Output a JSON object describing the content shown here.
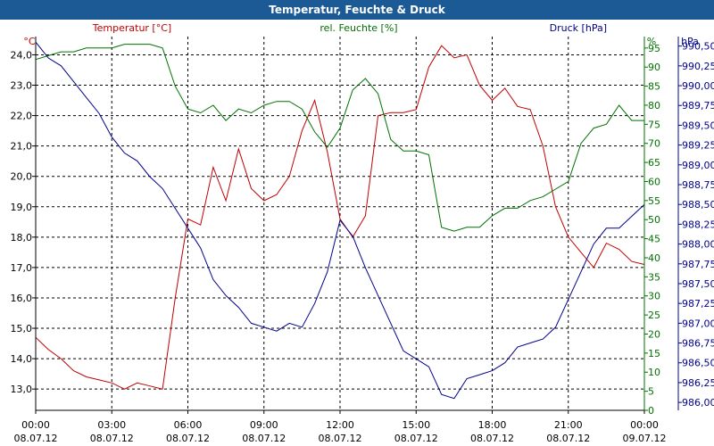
{
  "chart_data": {
    "type": "line",
    "title": "Temperatur, Feuchte & Druck",
    "x_ticks": [
      {
        "h": 0,
        "time": "00:00",
        "date": "08.07.12"
      },
      {
        "h": 3,
        "time": "03:00",
        "date": "08.07.12"
      },
      {
        "h": 6,
        "time": "06:00",
        "date": "08.07.12"
      },
      {
        "h": 9,
        "time": "09:00",
        "date": "08.07.12"
      },
      {
        "h": 12,
        "time": "12:00",
        "date": "08.07.12"
      },
      {
        "h": 15,
        "time": "15:00",
        "date": "08.07.12"
      },
      {
        "h": 18,
        "time": "18:00",
        "date": "08.07.12"
      },
      {
        "h": 21,
        "time": "21:00",
        "date": "08.07.12"
      },
      {
        "h": 24,
        "time": "00:00",
        "date": "09.07.12"
      }
    ],
    "x_range": [
      0,
      24
    ],
    "grid": true,
    "axes": {
      "temp": {
        "unit": "°C",
        "range": [
          12.3,
          24.6
        ],
        "ticks": [
          "13,0",
          "14,0",
          "15,0",
          "16,0",
          "17,0",
          "18,0",
          "19,0",
          "20,0",
          "21,0",
          "22,0",
          "23,0",
          "24,0"
        ],
        "tick_values": [
          13,
          14,
          15,
          16,
          17,
          18,
          19,
          20,
          21,
          22,
          23,
          24
        ]
      },
      "hum": {
        "unit": "%",
        "range": [
          0,
          98
        ],
        "ticks": [
          "0",
          "5",
          "10",
          "15",
          "20",
          "25",
          "30",
          "35",
          "40",
          "45",
          "50",
          "55",
          "60",
          "65",
          "70",
          "75",
          "80",
          "85",
          "90",
          "95"
        ],
        "tick_values": [
          0,
          5,
          10,
          15,
          20,
          25,
          30,
          35,
          40,
          45,
          50,
          55,
          60,
          65,
          70,
          75,
          80,
          85,
          90,
          95
        ]
      },
      "press": {
        "unit": "hPa",
        "range": [
          985.9,
          990.62
        ],
        "ticks": [
          "986,00",
          "986,25",
          "986,50",
          "986,75",
          "987,00",
          "987,25",
          "987,50",
          "987,75",
          "988,00",
          "988,25",
          "988,50",
          "988,75",
          "989,00",
          "989,25",
          "989,50",
          "989,75",
          "990,00",
          "990,25",
          "990,50"
        ],
        "tick_values": [
          986.0,
          986.25,
          986.5,
          986.75,
          987.0,
          987.25,
          987.5,
          987.75,
          988.0,
          988.25,
          988.5,
          988.75,
          989.0,
          989.25,
          989.5,
          989.75,
          990.0,
          990.25,
          990.5
        ]
      }
    },
    "series": [
      {
        "name": "Temperatur [°C]",
        "axis": "temp",
        "color": "#c00000",
        "x": [
          0,
          0.5,
          1,
          1.5,
          2,
          2.5,
          3,
          3.5,
          4,
          4.5,
          5,
          5.5,
          6,
          6.5,
          7,
          7.5,
          8,
          8.5,
          9,
          9.5,
          10,
          10.5,
          11,
          11.5,
          12,
          12.5,
          13,
          13.5,
          14,
          14.5,
          15,
          15.5,
          16,
          16.5,
          17,
          17.5,
          18,
          18.5,
          19,
          19.5,
          20,
          20.5,
          21,
          21.5,
          22,
          22.5,
          23,
          23.5,
          24
        ],
        "values": [
          14.7,
          14.3,
          14.0,
          13.6,
          13.4,
          13.3,
          13.2,
          13.0,
          13.2,
          13.1,
          13.0,
          16.0,
          18.6,
          18.4,
          20.3,
          19.2,
          20.9,
          19.6,
          19.2,
          19.4,
          20.0,
          21.5,
          22.5,
          20.8,
          18.6,
          18.0,
          18.7,
          22.0,
          22.1,
          22.1,
          22.2,
          23.6,
          24.3,
          23.9,
          24.0,
          23.0,
          22.5,
          22.9,
          22.3,
          22.2,
          21.0,
          19.0,
          18.0,
          17.5,
          17.0,
          17.8,
          17.6,
          17.2,
          17.1
        ]
      },
      {
        "name": "rel. Feuchte [%]",
        "axis": "hum",
        "color": "#007000",
        "x": [
          0,
          0.5,
          1,
          1.5,
          2,
          2.5,
          3,
          3.5,
          4,
          4.5,
          5,
          5.5,
          6,
          6.5,
          7,
          7.5,
          8,
          8.5,
          9,
          9.5,
          10,
          10.5,
          11,
          11.5,
          12,
          12.5,
          13,
          13.5,
          14,
          14.5,
          15,
          15.5,
          16,
          16.5,
          17,
          17.5,
          18,
          18.5,
          19,
          19.5,
          20,
          20.5,
          21,
          21.5,
          22,
          22.5,
          23,
          23.5,
          24
        ],
        "values": [
          92,
          93,
          94,
          94,
          95,
          95,
          95,
          96,
          96,
          96,
          95,
          85,
          79,
          78,
          80,
          76,
          79,
          78,
          80,
          81,
          81,
          79,
          73,
          69,
          74,
          84,
          87,
          83,
          71,
          68,
          68,
          67,
          48,
          47,
          48,
          48,
          51,
          53,
          53,
          55,
          56,
          58,
          60,
          70,
          74,
          75,
          80,
          76,
          76
        ]
      },
      {
        "name": "Druck [hPa]",
        "axis": "press",
        "color": "#00008b",
        "x": [
          0,
          0.5,
          1,
          1.5,
          2,
          2.5,
          3,
          3.5,
          4,
          4.5,
          5,
          5.5,
          6,
          6.5,
          7,
          7.5,
          8,
          8.5,
          9,
          9.5,
          10,
          10.5,
          11,
          11.5,
          12,
          12.5,
          13,
          13.5,
          14,
          14.5,
          15,
          15.5,
          16,
          16.5,
          17,
          17.5,
          18,
          18.5,
          19,
          19.5,
          20,
          20.5,
          21,
          21.5,
          22,
          22.5,
          23,
          23.5,
          24
        ],
        "values": [
          990.55,
          990.35,
          990.25,
          990.05,
          989.85,
          989.65,
          989.35,
          989.15,
          989.05,
          988.85,
          988.7,
          988.45,
          988.2,
          987.95,
          987.55,
          987.35,
          987.2,
          987.0,
          986.95,
          986.9,
          987.0,
          986.95,
          987.25,
          987.65,
          988.3,
          988.1,
          987.7,
          987.35,
          987.0,
          986.65,
          986.55,
          986.45,
          986.1,
          986.05,
          986.3,
          986.35,
          986.4,
          986.5,
          986.7,
          986.75,
          986.8,
          986.95,
          987.3,
          987.65,
          988.0,
          988.2,
          988.2,
          988.35,
          988.5
        ]
      }
    ],
    "legend": "top, above plot area"
  }
}
